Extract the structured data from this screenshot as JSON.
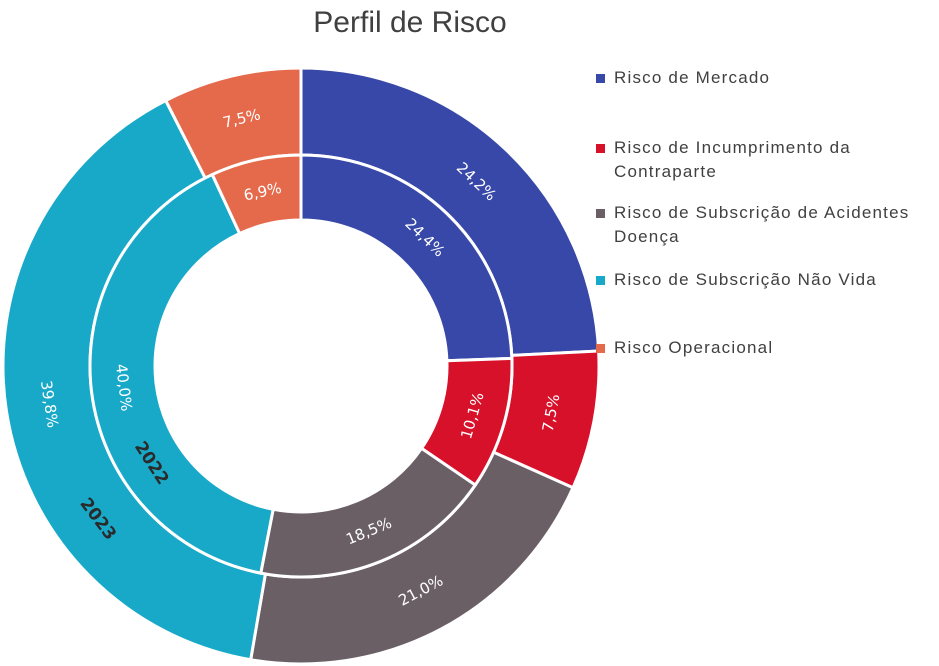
{
  "chart_data": {
    "type": "donut",
    "title": "Perfil de Risco",
    "categories": [
      "Risco de Mercado",
      "Risco de Incumprimento da\nContraparte",
      "Risco de Subscrição de Acidentes\nDoença",
      "Risco de Subscrição Não Vida",
      "Risco Operacional"
    ],
    "colors": [
      "#3748a8",
      "#d8112b",
      "#6b5f66",
      "#18a9c8",
      "#e56a4c"
    ],
    "series": [
      {
        "name": "2023",
        "ring": "outer",
        "values": [
          24.2,
          7.5,
          21.0,
          39.8,
          7.5
        ],
        "labels": [
          "24,2%",
          "7,5%",
          "21,0%",
          "39,8%",
          "7,5%"
        ]
      },
      {
        "name": "2022",
        "ring": "inner",
        "values": [
          24.4,
          10.1,
          18.5,
          40.0,
          6.9
        ],
        "labels": [
          "24,4%",
          "10,1%",
          "18,5%",
          "40,0%",
          "6,9%"
        ]
      }
    ],
    "legend_position": "right"
  }
}
